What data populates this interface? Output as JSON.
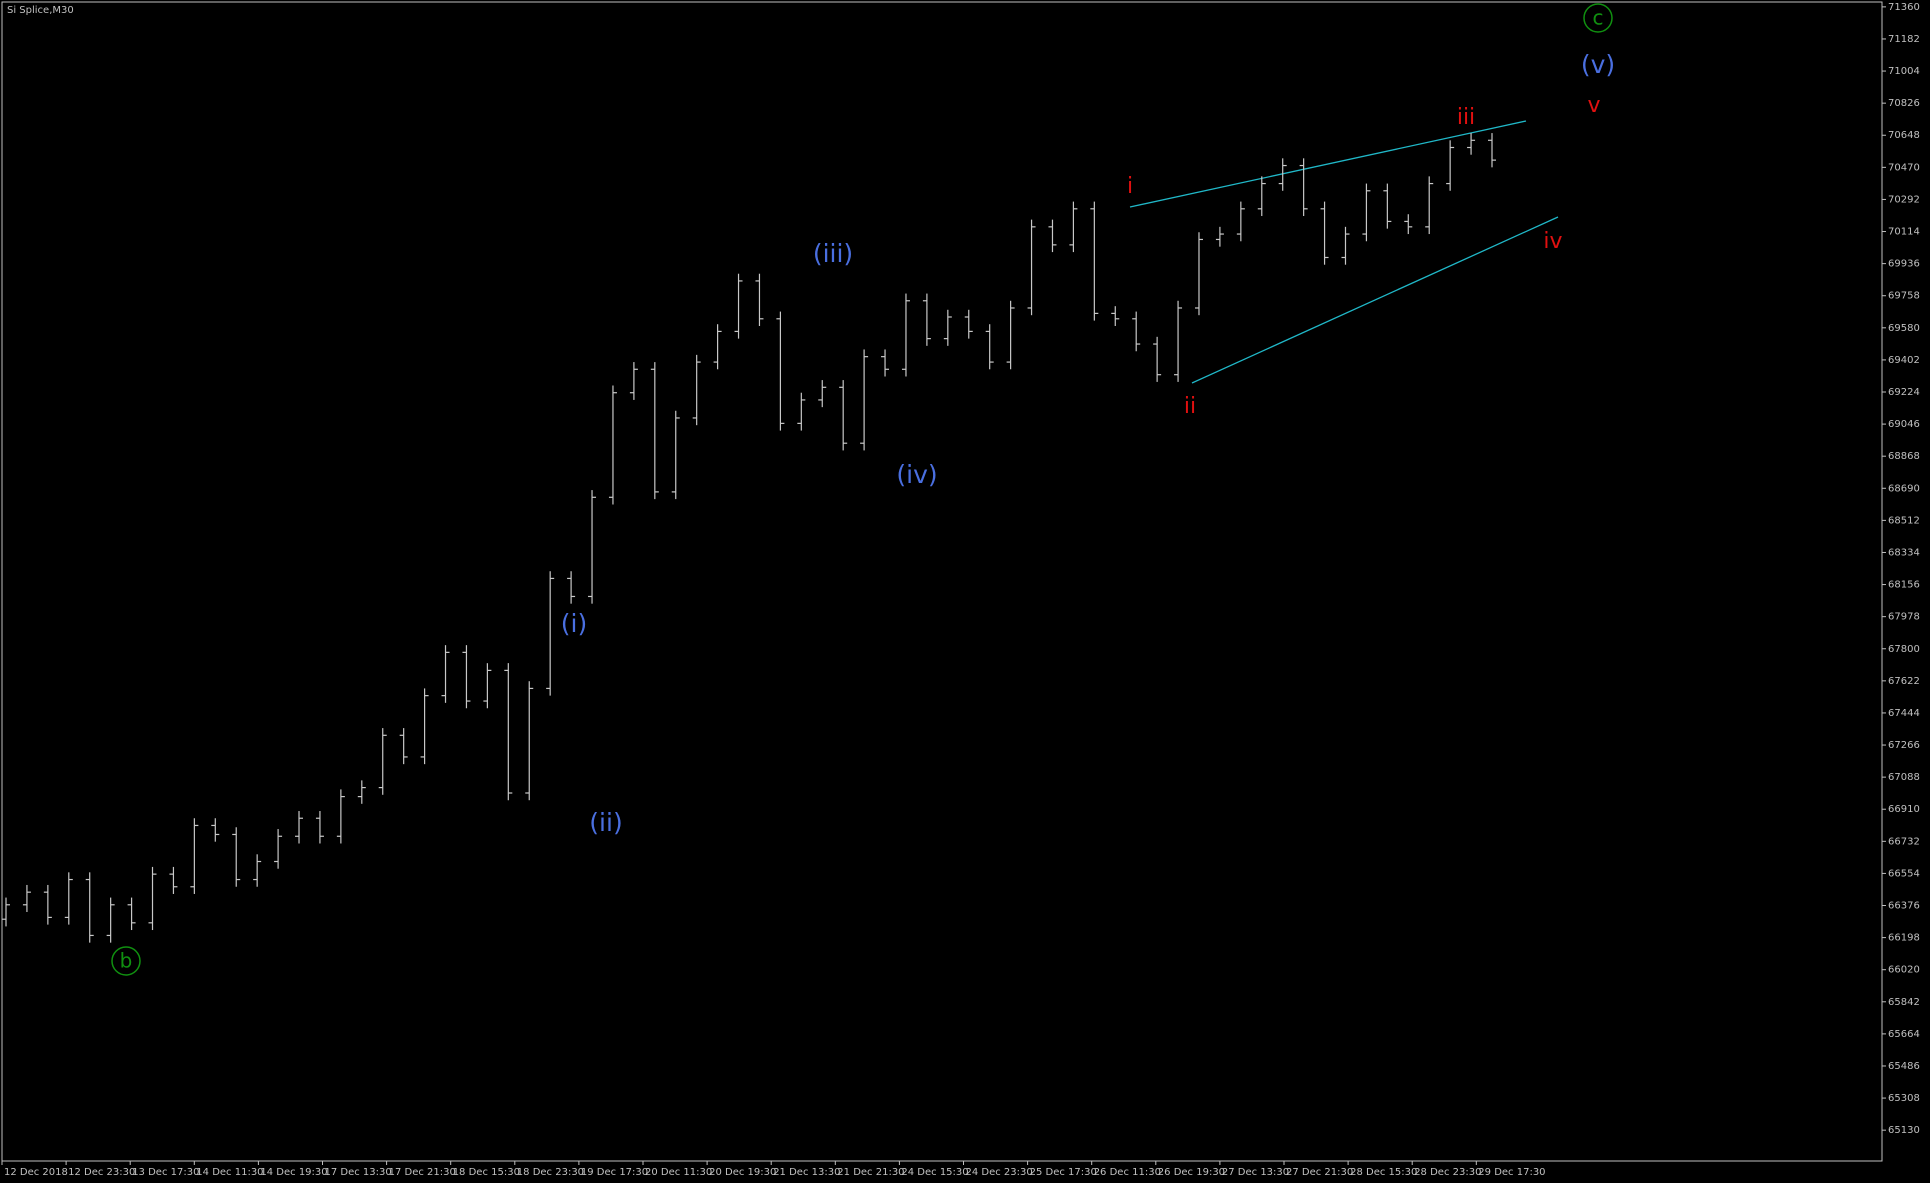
{
  "chart_data": {
    "type": "ohlc",
    "title": "Si Splice,M30",
    "color": "#c8c8c8",
    "background": "#000000",
    "axis_color": "#c0c0c0",
    "ylim": [
      64959,
      71387
    ],
    "yticks": [
      71360,
      71182,
      71004,
      70826,
      70648,
      70470,
      70292,
      70114,
      69936,
      69758,
      69580,
      69402,
      69224,
      69046,
      68868,
      68690,
      68512,
      68334,
      68156,
      67978,
      67800,
      67622,
      67444,
      67266,
      67088,
      66910,
      66732,
      66554,
      66376,
      66198,
      66020,
      65842,
      65664,
      65486,
      65308,
      65130
    ],
    "xticks": [
      "12 Dec 2018",
      "12 Dec 23:30",
      "13 Dec 17:30",
      "14 Dec 11:30",
      "14 Dec 19:30",
      "17 Dec 13:30",
      "17 Dec 21:30",
      "18 Dec 15:30",
      "18 Dec 23:30",
      "19 Dec 17:30",
      "20 Dec 11:30",
      "20 Dec 19:30",
      "21 Dec 13:30",
      "21 Dec 21:30",
      "24 Dec 15:30",
      "24 Dec 23:30",
      "25 Dec 17:30",
      "26 Dec 11:30",
      "26 Dec 19:30",
      "27 Dec 13:30",
      "27 Dec 21:30",
      "28 Dec 15:30",
      "28 Dec 23:30",
      "29 Dec 17:30"
    ],
    "open": [
      66300,
      66380,
      66450,
      66310,
      66520,
      66210,
      66380,
      66280,
      66550,
      66480,
      66820,
      66770,
      66520,
      66620,
      66760,
      66860,
      66760,
      66980,
      67030,
      67320,
      67200,
      67540,
      67780,
      67510,
      67680,
      67000,
      67580,
      68190,
      68090,
      68640,
      69220,
      69350,
      68670,
      69080,
      69390,
      69560,
      69840,
      69630,
      69050,
      69180,
      69250,
      68940,
      69420,
      69350,
      69730,
      69520,
      69640,
      69560,
      69390,
      69690,
      70140,
      70040,
      70240,
      69660,
      69630,
      69490,
      69320,
      69690,
      70070,
      70100,
      70240,
      70380,
      70480,
      70240,
      69970,
      70100,
      70340,
      70170,
      70140,
      70380,
      70580,
      70620
    ],
    "high": [
      66420,
      66490,
      66490,
      66560,
      66560,
      66420,
      66420,
      66590,
      66590,
      66860,
      66860,
      66810,
      66660,
      66800,
      66900,
      66900,
      67020,
      67070,
      67360,
      67360,
      67580,
      67820,
      67820,
      67720,
      67720,
      67620,
      68230,
      68230,
      68680,
      69260,
      69390,
      69390,
      69120,
      69430,
      69600,
      69880,
      69880,
      69670,
      69220,
      69290,
      69290,
      69460,
      69460,
      69770,
      69770,
      69680,
      69680,
      69600,
      69730,
      70180,
      70180,
      70280,
      70280,
      69700,
      69670,
      69530,
      69730,
      70110,
      70140,
      70280,
      70420,
      70520,
      70520,
      70280,
      70140,
      70380,
      70380,
      70210,
      70420,
      70620,
      70660,
      70660
    ],
    "low": [
      66260,
      66340,
      66270,
      66270,
      66170,
      66170,
      66240,
      66240,
      66440,
      66440,
      66730,
      66480,
      66480,
      66580,
      66720,
      66720,
      66720,
      66940,
      66990,
      67160,
      67160,
      67500,
      67470,
      67470,
      66960,
      66960,
      67540,
      68050,
      68050,
      68600,
      69180,
      68630,
      68630,
      69040,
      69350,
      69520,
      69590,
      69010,
      69010,
      69140,
      68900,
      68900,
      69310,
      69310,
      69480,
      69480,
      69520,
      69350,
      69350,
      69650,
      70000,
      70000,
      69620,
      69590,
      69450,
      69280,
      69280,
      69650,
      70030,
      70060,
      70200,
      70340,
      70200,
      69930,
      69930,
      70060,
      70130,
      70100,
      70100,
      70340,
      70540,
      70470
    ],
    "close": [
      66380,
      66450,
      66310,
      66520,
      66210,
      66380,
      66280,
      66550,
      66480,
      66820,
      66770,
      66520,
      66620,
      66760,
      66860,
      66760,
      66980,
      67030,
      67320,
      67200,
      67540,
      67780,
      67510,
      67680,
      67000,
      67580,
      68190,
      68090,
      68640,
      69220,
      69350,
      68670,
      69080,
      69390,
      69560,
      69840,
      69630,
      69050,
      69180,
      69250,
      68940,
      69420,
      69350,
      69730,
      69520,
      69640,
      69560,
      69390,
      69690,
      70140,
      70040,
      70240,
      69660,
      69630,
      69490,
      69320,
      69690,
      70070,
      70100,
      70240,
      70380,
      70480,
      70240,
      69970,
      70100,
      70340,
      70170,
      70140,
      70380,
      70580,
      70620,
      70510
    ],
    "annotations": [
      {
        "text": "b",
        "color": "#109010",
        "circled": true
      },
      {
        "text": "(i)",
        "color": "#4a6fe0"
      },
      {
        "text": "(ii)",
        "color": "#4a6fe0"
      },
      {
        "text": "(iii)",
        "color": "#4a6fe0"
      },
      {
        "text": "(iv)",
        "color": "#4a6fe0"
      },
      {
        "text": "(v)",
        "color": "#4a6fe0"
      },
      {
        "text": "c",
        "color": "#109010",
        "circled": true
      },
      {
        "text": "i",
        "color": "#e01010"
      },
      {
        "text": "ii",
        "color": "#e01010"
      },
      {
        "text": "iii",
        "color": "#e01010"
      },
      {
        "text": "iv",
        "color": "#e01010"
      },
      {
        "text": "v",
        "color": "#e01010"
      }
    ],
    "trendline_color": "#20b8c8"
  }
}
